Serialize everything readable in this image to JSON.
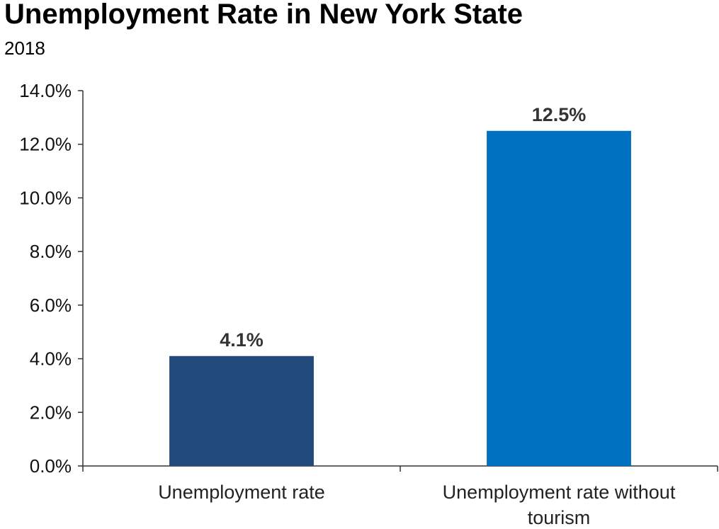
{
  "chart_data": {
    "type": "bar",
    "title": "Unemployment Rate in New York State",
    "subtitle": "2018",
    "categories": [
      [
        "Unemployment rate"
      ],
      [
        "Unemployment rate without",
        "tourism"
      ]
    ],
    "values": [
      4.1,
      12.5
    ],
    "data_labels": [
      "4.1%",
      "12.5%"
    ],
    "bar_colors": [
      "#21497A",
      "#0070C0"
    ],
    "ylim": [
      0,
      14
    ],
    "yticks": [
      0,
      2,
      4,
      6,
      8,
      10,
      12,
      14
    ],
    "ytick_labels": [
      "0.0%",
      "2.0%",
      "4.0%",
      "6.0%",
      "8.0%",
      "10.0%",
      "12.0%",
      "14.0%"
    ],
    "grid": false,
    "legend": "none",
    "axis_color": "#333333"
  }
}
